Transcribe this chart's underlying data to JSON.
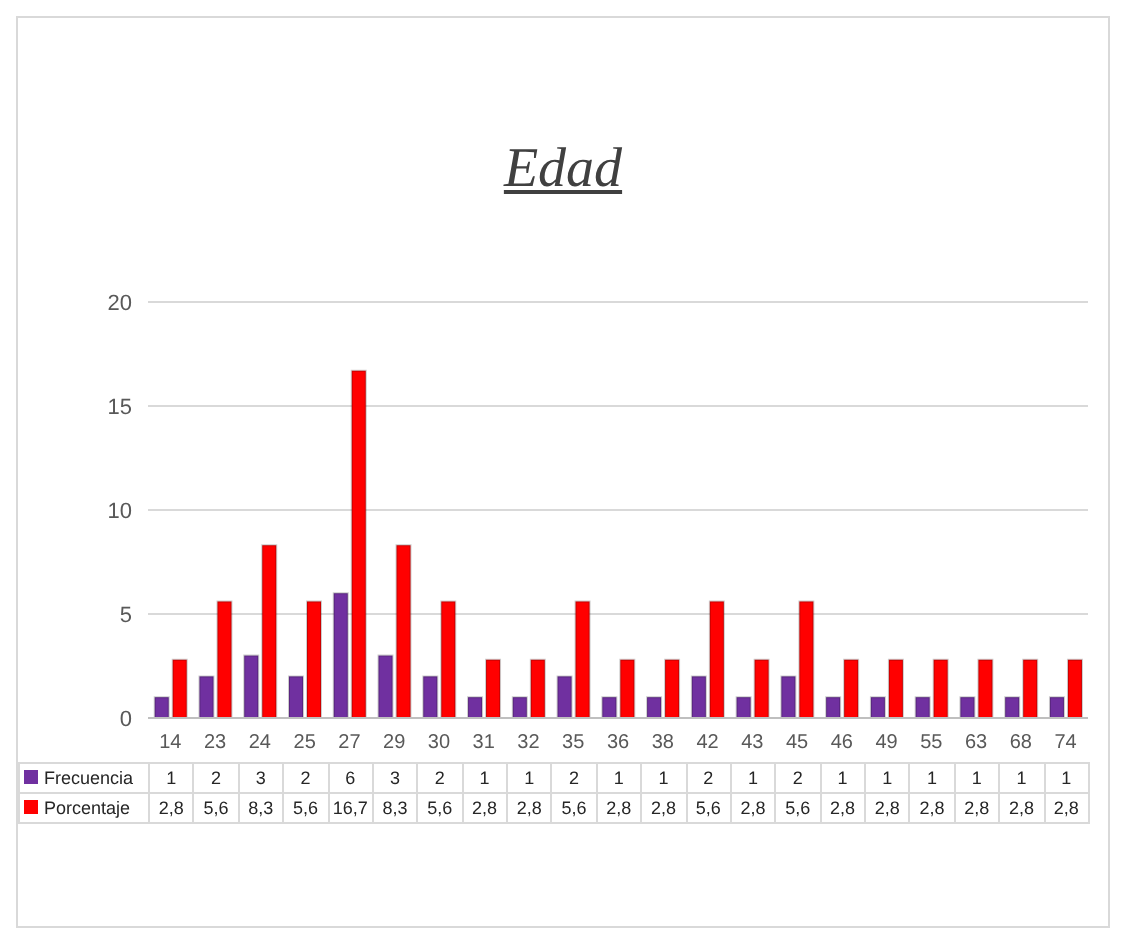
{
  "chart_data": {
    "type": "bar",
    "title": "Edad",
    "categories": [
      "14",
      "23",
      "24",
      "25",
      "27",
      "29",
      "30",
      "31",
      "32",
      "35",
      "36",
      "38",
      "42",
      "43",
      "45",
      "46",
      "49",
      "55",
      "63",
      "68",
      "74"
    ],
    "series": [
      {
        "name": "Frecuencia",
        "color": "#7030a0",
        "values": [
          1,
          2,
          3,
          2,
          6,
          3,
          2,
          1,
          1,
          2,
          1,
          1,
          2,
          1,
          2,
          1,
          1,
          1,
          1,
          1,
          1
        ],
        "value_labels": [
          "1",
          "2",
          "3",
          "2",
          "6",
          "3",
          "2",
          "1",
          "1",
          "2",
          "1",
          "1",
          "2",
          "1",
          "2",
          "1",
          "1",
          "1",
          "1",
          "1",
          "1"
        ]
      },
      {
        "name": "Porcentaje",
        "color": "#ff0000",
        "values": [
          2.8,
          5.6,
          8.3,
          5.6,
          16.7,
          8.3,
          5.6,
          2.8,
          2.8,
          5.6,
          2.8,
          2.8,
          5.6,
          2.8,
          5.6,
          2.8,
          2.8,
          2.8,
          2.8,
          2.8,
          2.8
        ],
        "value_labels": [
          "2,8",
          "5,6",
          "8,3",
          "5,6",
          "16,7",
          "8,3",
          "5,6",
          "2,8",
          "2,8",
          "5,6",
          "2,8",
          "2,8",
          "5,6",
          "2,8",
          "5,6",
          "2,8",
          "2,8",
          "2,8",
          "2,8",
          "2,8",
          "2,8"
        ]
      }
    ],
    "ylim": [
      0,
      20
    ],
    "yticks": [
      0,
      5,
      10,
      15,
      20
    ],
    "grid": "y",
    "legend": "bottom"
  }
}
